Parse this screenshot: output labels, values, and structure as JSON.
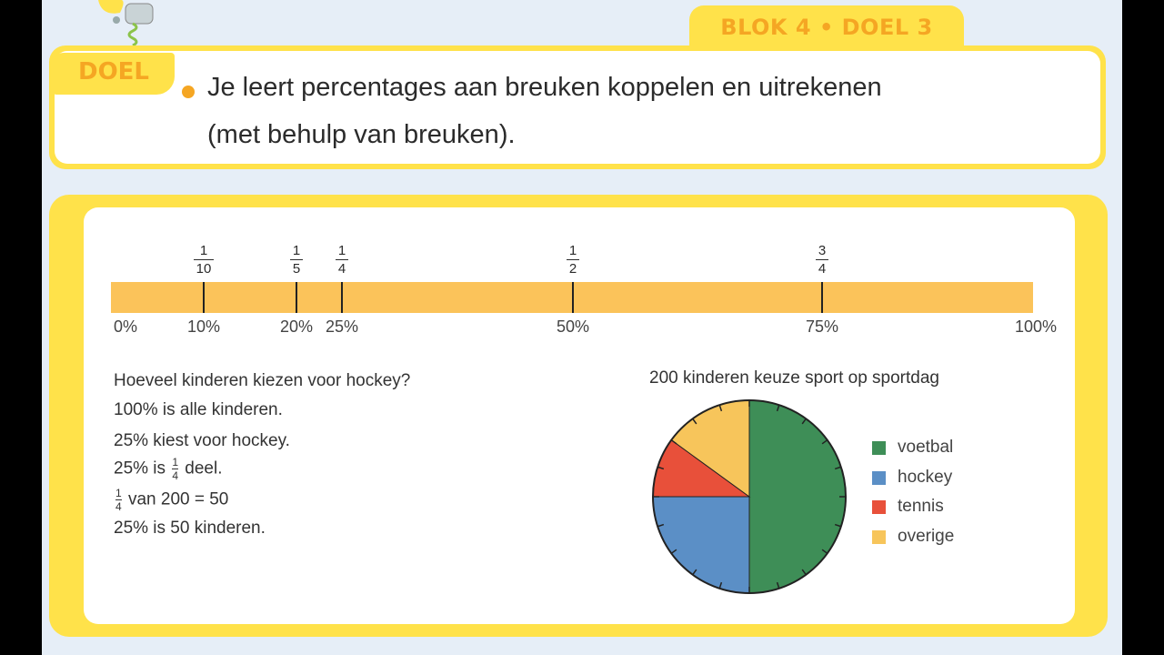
{
  "header": {
    "tab": "BLOK 4 • DOEL 3"
  },
  "goal": {
    "label": "DOEL",
    "line1": "Je leert percentages aan breuken koppelen en uitrekenen",
    "line2": "(met behulp van breuken)."
  },
  "number_line": {
    "percent_labels": [
      "0%",
      "10%",
      "20%",
      "25%",
      "50%",
      "75%",
      "100%"
    ],
    "fractions": [
      {
        "num": "1",
        "den": "10",
        "percent": 10
      },
      {
        "num": "1",
        "den": "5",
        "percent": 20
      },
      {
        "num": "1",
        "den": "4",
        "percent": 25
      },
      {
        "num": "1",
        "den": "2",
        "percent": 50
      },
      {
        "num": "3",
        "den": "4",
        "percent": 75
      }
    ]
  },
  "explanation": {
    "q": "Hoeveel kinderen kiezen voor hockey?",
    "l1": "100% is alle kinderen.",
    "l2": "25% kiest voor hockey.",
    "l3a": "25% is",
    "l3_num": "1",
    "l3_den": "4",
    "l3b": "deel.",
    "l4_num": "1",
    "l4_den": "4",
    "l4b": "van 200 = 50",
    "l5": "25% is 50 kinderen."
  },
  "chart_data": {
    "type": "pie",
    "title": "200 kinderen keuze sport op sportdag",
    "slices": [
      {
        "label": "voetbal",
        "value": 50,
        "color": "#3e8e57"
      },
      {
        "label": "hockey",
        "value": 25,
        "color": "#5b8fc6"
      },
      {
        "label": "tennis",
        "value": 10,
        "color": "#e8503a"
      },
      {
        "label": "overige",
        "value": 15,
        "color": "#f7c55b"
      }
    ]
  }
}
